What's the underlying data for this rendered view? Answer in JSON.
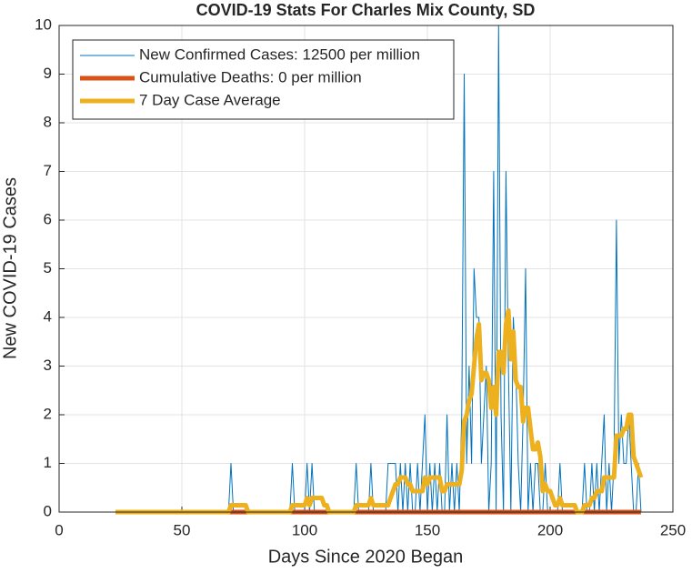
{
  "chart_data": {
    "type": "line",
    "title": "COVID-19 Stats For Charles Mix County, SD",
    "x_label": "Days Since 2020 Began",
    "y_label": "New COVID-19 Cases",
    "x": [
      23,
      24,
      25,
      26,
      27,
      28,
      29,
      30,
      31,
      32,
      33,
      34,
      35,
      36,
      37,
      38,
      39,
      40,
      41,
      42,
      43,
      44,
      45,
      46,
      47,
      48,
      49,
      50,
      51,
      52,
      53,
      54,
      55,
      56,
      57,
      58,
      59,
      60,
      61,
      62,
      63,
      64,
      65,
      66,
      67,
      68,
      69,
      70,
      71,
      72,
      73,
      74,
      75,
      76,
      77,
      78,
      79,
      80,
      81,
      82,
      83,
      84,
      85,
      86,
      87,
      88,
      89,
      90,
      91,
      92,
      93,
      94,
      95,
      96,
      97,
      98,
      99,
      100,
      101,
      102,
      103,
      104,
      105,
      106,
      107,
      108,
      109,
      110,
      111,
      112,
      113,
      114,
      115,
      116,
      117,
      118,
      119,
      120,
      121,
      122,
      123,
      124,
      125,
      126,
      127,
      128,
      129,
      130,
      131,
      132,
      133,
      134,
      135,
      136,
      137,
      138,
      139,
      140,
      141,
      142,
      143,
      144,
      145,
      146,
      147,
      148,
      149,
      150,
      151,
      152,
      153,
      154,
      155,
      156,
      157,
      158,
      159,
      160,
      161,
      162,
      163,
      164,
      165,
      166,
      167,
      168,
      169,
      170,
      171,
      172,
      173,
      174,
      175,
      176,
      177,
      178,
      179,
      180,
      181,
      182,
      183,
      184,
      185,
      186,
      187,
      188,
      189,
      190,
      191,
      192,
      193,
      194,
      195,
      196,
      197,
      198,
      199,
      200,
      201,
      202,
      203,
      204,
      205,
      206,
      207,
      208,
      209,
      210,
      211,
      212,
      213,
      214,
      215,
      216,
      217,
      218,
      219,
      220,
      221,
      222,
      223,
      224,
      225,
      226,
      227,
      228,
      229,
      230,
      231,
      232,
      233,
      234,
      235,
      236,
      237
    ],
    "series": [
      {
        "name": "New Confirmed Cases: 12500 per million",
        "color": "#0072BD",
        "width": 1,
        "values": [
          0,
          0,
          0,
          0,
          0,
          0,
          0,
          0,
          0,
          0,
          0,
          0,
          0,
          0,
          0,
          0,
          0,
          0,
          0,
          0,
          0,
          0,
          0,
          0,
          0,
          0,
          0,
          0,
          0,
          0,
          0,
          0,
          0,
          0,
          0,
          0,
          0,
          0,
          0,
          0,
          0,
          0,
          0,
          0,
          0,
          0,
          0,
          1,
          0,
          0,
          0,
          0,
          0,
          0,
          0,
          0,
          0,
          0,
          0,
          0,
          0,
          0,
          0,
          0,
          0,
          0,
          0,
          0,
          0,
          0,
          0,
          0,
          1,
          0,
          0,
          0,
          0,
          0,
          1,
          0,
          1,
          0,
          0,
          0,
          0,
          0,
          0,
          0,
          0,
          0,
          0,
          0,
          0,
          0,
          0,
          0,
          0,
          0,
          1,
          0,
          0,
          0,
          0,
          0,
          1,
          0,
          0,
          0,
          0,
          0,
          0,
          1,
          1,
          1,
          1,
          0,
          1,
          0,
          1,
          0,
          1,
          0,
          0,
          1,
          0,
          1,
          2,
          0,
          1,
          0,
          1,
          0,
          1,
          0,
          0,
          2,
          0,
          1,
          0,
          1,
          0,
          2,
          9,
          1,
          3,
          1,
          5,
          4,
          4,
          1,
          2,
          3,
          0,
          1,
          7,
          0,
          10,
          2,
          0,
          7,
          3,
          0,
          4,
          3,
          1,
          0,
          2,
          5,
          0,
          1,
          0,
          1,
          1,
          0,
          0,
          1,
          0,
          0,
          0,
          0,
          0,
          1,
          0,
          0,
          0,
          0,
          0,
          0,
          0,
          0,
          0,
          1,
          0,
          0,
          1,
          0,
          1,
          0,
          1,
          2,
          0,
          1,
          0,
          1,
          6,
          1,
          2,
          1,
          1,
          2,
          1,
          0,
          0,
          1,
          0
        ]
      },
      {
        "name": "Cumulative Deaths: 0 per million",
        "color": "#D95319",
        "width": 5,
        "values": [
          0,
          0,
          0,
          0,
          0,
          0,
          0,
          0,
          0,
          0,
          0,
          0,
          0,
          0,
          0,
          0,
          0,
          0,
          0,
          0,
          0,
          0,
          0,
          0,
          0,
          0,
          0,
          0,
          0,
          0,
          0,
          0,
          0,
          0,
          0,
          0,
          0,
          0,
          0,
          0,
          0,
          0,
          0,
          0,
          0,
          0,
          0,
          0,
          0,
          0,
          0,
          0,
          0,
          0,
          0,
          0,
          0,
          0,
          0,
          0,
          0,
          0,
          0,
          0,
          0,
          0,
          0,
          0,
          0,
          0,
          0,
          0,
          0,
          0,
          0,
          0,
          0,
          0,
          0,
          0,
          0,
          0,
          0,
          0,
          0,
          0,
          0,
          0,
          0,
          0,
          0,
          0,
          0,
          0,
          0,
          0,
          0,
          0,
          0,
          0,
          0,
          0,
          0,
          0,
          0,
          0,
          0,
          0,
          0,
          0,
          0,
          0,
          0,
          0,
          0,
          0,
          0,
          0,
          0,
          0,
          0,
          0,
          0,
          0,
          0,
          0,
          0,
          0,
          0,
          0,
          0,
          0,
          0,
          0,
          0,
          0,
          0,
          0,
          0,
          0,
          0,
          0,
          0,
          0,
          0,
          0,
          0,
          0,
          0,
          0,
          0,
          0,
          0,
          0,
          0,
          0,
          0,
          0,
          0,
          0,
          0,
          0,
          0,
          0,
          0,
          0,
          0,
          0,
          0,
          0,
          0,
          0,
          0,
          0,
          0,
          0,
          0,
          0,
          0,
          0,
          0,
          0,
          0,
          0,
          0,
          0,
          0,
          0,
          0,
          0,
          0,
          0,
          0,
          0,
          0,
          0,
          0,
          0,
          0,
          0,
          0,
          0,
          0,
          0,
          0,
          0,
          0,
          0,
          0,
          0,
          0,
          0,
          0,
          0,
          0
        ]
      },
      {
        "name": "7 Day Case Average",
        "color": "#EDB120",
        "width": 5,
        "values": [
          0,
          0,
          0,
          0,
          0,
          0,
          0,
          0,
          0,
          0,
          0,
          0,
          0,
          0,
          0,
          0,
          0,
          0,
          0,
          0,
          0,
          0,
          0,
          0,
          0,
          0,
          0,
          0,
          0,
          0,
          0,
          0,
          0,
          0,
          0,
          0,
          0,
          0,
          0,
          0,
          0,
          0,
          0,
          0,
          0,
          0,
          0,
          0.14,
          0.14,
          0.14,
          0.14,
          0.14,
          0.14,
          0.14,
          0,
          0,
          0,
          0,
          0,
          0,
          0,
          0,
          0,
          0,
          0,
          0,
          0,
          0,
          0,
          0,
          0,
          0,
          0.14,
          0.14,
          0.14,
          0.14,
          0.14,
          0.14,
          0.29,
          0.14,
          0.29,
          0.29,
          0.29,
          0.29,
          0.29,
          0.14,
          0.14,
          0,
          0,
          0,
          0,
          0,
          0,
          0,
          0,
          0,
          0,
          0,
          0.14,
          0.14,
          0.14,
          0.14,
          0.14,
          0.14,
          0.29,
          0.14,
          0.14,
          0.14,
          0.14,
          0.14,
          0.14,
          0.14,
          0.29,
          0.43,
          0.57,
          0.57,
          0.71,
          0.71,
          0.71,
          0.57,
          0.57,
          0.43,
          0.43,
          0.43,
          0.43,
          0.43,
          0.71,
          0.57,
          0.71,
          0.71,
          0.71,
          0.71,
          0.71,
          0.43,
          0.43,
          0.57,
          0.57,
          0.57,
          0.57,
          0.57,
          0.57,
          0.86,
          1.86,
          2,
          2.29,
          2.43,
          3,
          3.57,
          3.86,
          2.71,
          2.86,
          2.86,
          2.71,
          2.14,
          2.57,
          2,
          3.29,
          3.29,
          2.86,
          3.86,
          4.14,
          3.14,
          3.71,
          2.71,
          2.57,
          2.57,
          1.86,
          2.14,
          2.14,
          1.71,
          1.29,
          1.29,
          1.43,
          1.14,
          0.43,
          0.57,
          0.43,
          0.43,
          0.29,
          0.14,
          0.14,
          0.29,
          0.14,
          0.14,
          0.14,
          0.14,
          0.14,
          0.14,
          0,
          0,
          0,
          0.14,
          0.14,
          0.14,
          0.29,
          0.29,
          0.43,
          0.43,
          0.43,
          0.71,
          0.71,
          0.71,
          0.71,
          0.71,
          1.57,
          1.57,
          1.57,
          1.71,
          1.71,
          2,
          2,
          1.14,
          1,
          0.86,
          0.71
        ]
      }
    ],
    "xlim": [
      0,
      250
    ],
    "xticks": [
      0,
      50,
      100,
      150,
      200,
      250
    ],
    "ylim": [
      0,
      10
    ],
    "yticks": [
      0,
      1,
      2,
      3,
      4,
      5,
      6,
      7,
      8,
      9,
      10
    ],
    "grid": true,
    "legend": "northwest"
  }
}
